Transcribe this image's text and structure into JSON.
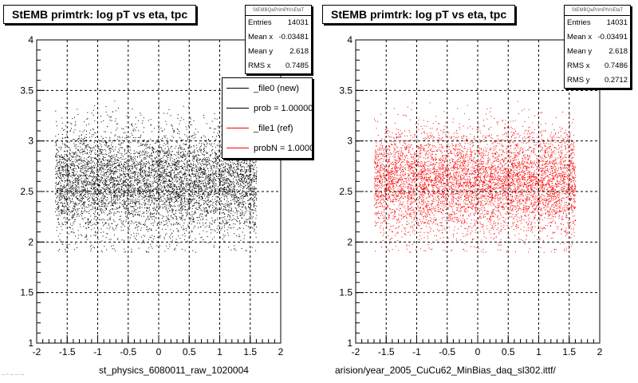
{
  "chart_data": [
    {
      "type": "scatter",
      "title": "StEMB primtrk: log pT vs eta, tpc",
      "xlabel": "st_physics_6080011_raw_1020004",
      "ylabel": "",
      "xlim": [
        -2,
        2
      ],
      "ylim": [
        1,
        4
      ],
      "xticks": [
        "-2",
        "-1.5",
        "-1",
        "-0.5",
        "0",
        "0.5",
        "1",
        "1.5",
        "2"
      ],
      "yticks": [
        "1",
        "1.5",
        "2",
        "2.5",
        "3",
        "3.5",
        "4"
      ],
      "grid": true,
      "point_color": "#000000",
      "distribution": {
        "x_range": [
          -1.7,
          1.6
        ],
        "y_range": [
          1.9,
          3.4
        ],
        "y_peak": 2.6
      },
      "stats": {
        "name": "StEMBQaPrimPtVsEtaT",
        "rows": [
          {
            "label": "Entries",
            "value": "14031"
          },
          {
            "label": "Mean x",
            "value": "-0.03481"
          },
          {
            "label": "Mean y",
            "value": "2.618"
          },
          {
            "label": "RMS x",
            "value": "0.7485"
          }
        ]
      },
      "legend": {
        "position": "top-right",
        "entries": [
          {
            "label": "_file0 (new)",
            "color": "#000000"
          },
          {
            "label": "prob = 1.000000",
            "color": "#000000"
          },
          {
            "label": "_file1 (ref)",
            "color": "#ff0000"
          },
          {
            "label": "probN = 1.000000",
            "color": "#ff0000"
          }
        ]
      }
    },
    {
      "type": "scatter",
      "title": "StEMB primtrk: log pT vs eta, tpc",
      "xlabel": "arision/year_2005_CuCu62_MinBias_daq_sl302.ittf/",
      "ylabel": "",
      "xlim": [
        -2,
        2
      ],
      "ylim": [
        1,
        4
      ],
      "xticks": [
        "-2",
        "-1.5",
        "-1",
        "-0.5",
        "0",
        "0.5",
        "1",
        "1.5",
        "2"
      ],
      "yticks": [
        "1",
        "1.5",
        "2",
        "2.5",
        "3",
        "3.5",
        "4"
      ],
      "grid": true,
      "point_color": "#ff0000",
      "distribution": {
        "x_range": [
          -1.7,
          1.6
        ],
        "y_range": [
          1.9,
          3.4
        ],
        "y_peak": 2.6
      },
      "stats": {
        "name": "StEMBQaPrimPtVsEtaT",
        "rows": [
          {
            "label": "Entries",
            "value": "14031"
          },
          {
            "label": "Mean x",
            "value": "-0.03491"
          },
          {
            "label": "Mean y",
            "value": "2.618"
          },
          {
            "label": "RMS x",
            "value": "0.7486"
          },
          {
            "label": "RMS y",
            "value": "0.2712"
          }
        ]
      }
    }
  ],
  "footer_note": "... - ... ... ..."
}
